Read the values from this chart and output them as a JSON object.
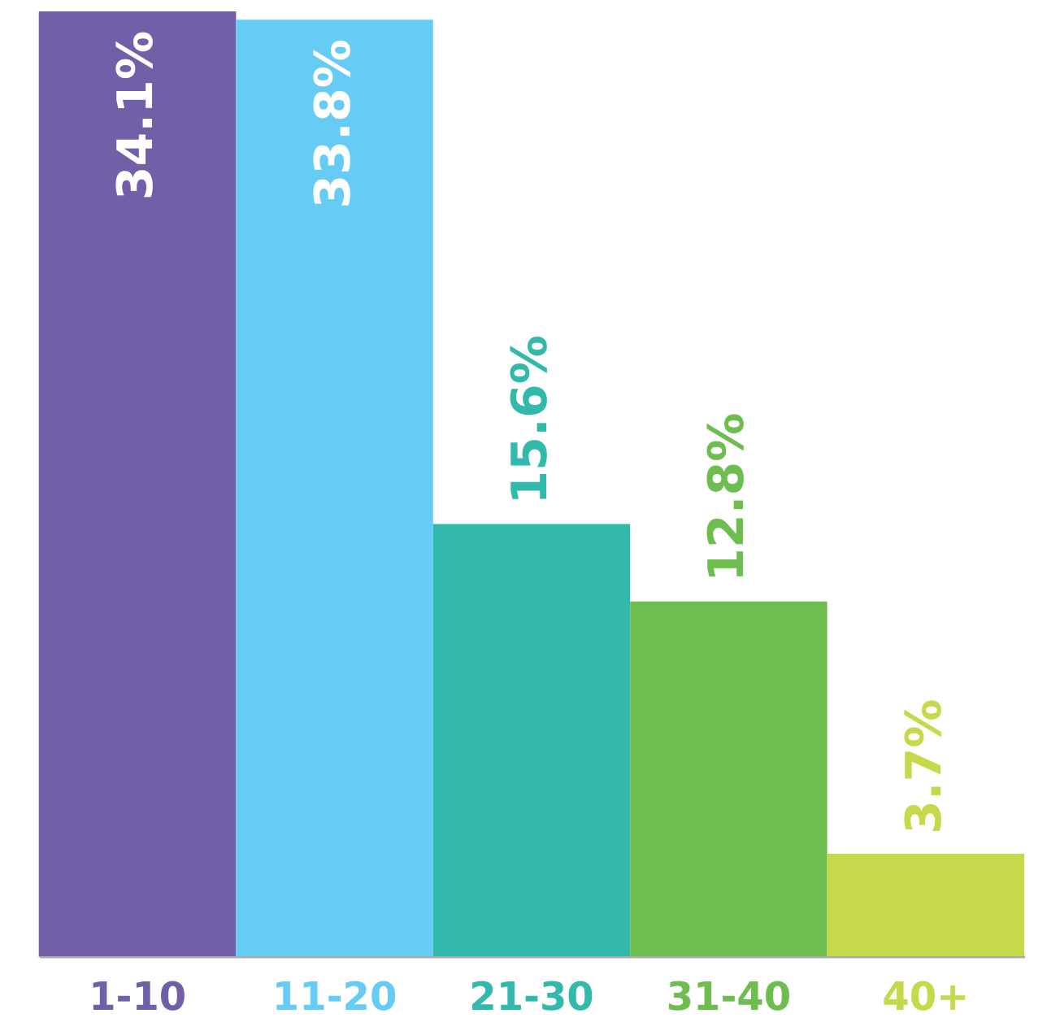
{
  "chart_data": {
    "type": "bar",
    "categories": [
      "1-10",
      "11-20",
      "21-30",
      "31-40",
      "40+"
    ],
    "values": [
      34.1,
      33.8,
      15.6,
      12.8,
      3.7
    ],
    "colors": [
      "#7160a8",
      "#66ccf5",
      "#33b9ac",
      "#6dbd4f",
      "#c5d94a"
    ],
    "value_labels": [
      "34.1%",
      "33.8%",
      "15.6%",
      "12.8%",
      "3.7%"
    ]
  }
}
